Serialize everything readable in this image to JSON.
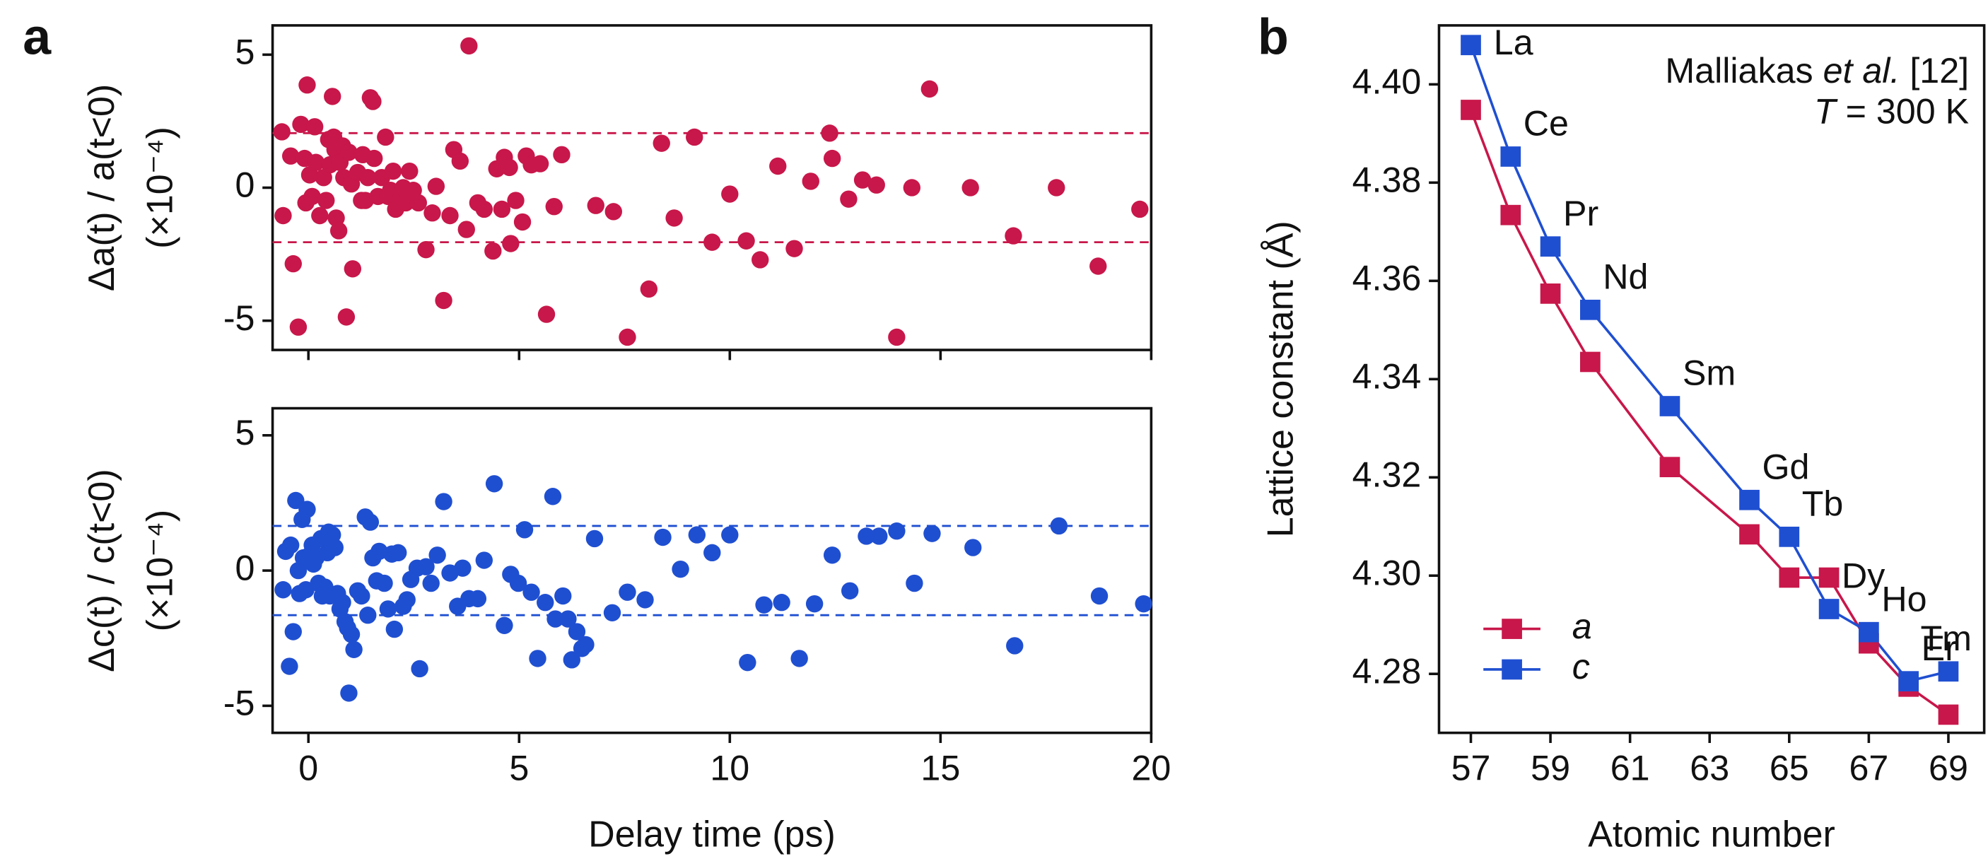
{
  "chart_data": [
    {
      "type": "scatter",
      "panel_label": "a",
      "ylabel": "Δa(t) / a(t<0)",
      "ylabel_unit": "(×10⁻⁴)",
      "color": "#c8174a",
      "xlim": [
        -0.85,
        20
      ],
      "xticks": [
        0,
        5,
        10,
        15,
        20
      ],
      "xtick_labels": false,
      "ylim": [
        -6.1,
        6.1
      ],
      "yticks": [
        -5,
        0,
        5
      ],
      "reference_lines": [
        2.05,
        -2.05
      ],
      "x": [
        -0.63,
        -0.6,
        -0.42,
        -0.36,
        -0.24,
        -0.18,
        -0.09,
        -0.06,
        -0.03,
        0.03,
        0.09,
        0.15,
        0.18,
        0.27,
        0.36,
        0.42,
        0.48,
        0.51,
        0.57,
        0.6,
        0.63,
        0.66,
        0.72,
        0.75,
        0.81,
        0.84,
        0.9,
        0.96,
        1.02,
        1.05,
        1.17,
        1.26,
        1.29,
        1.35,
        1.41,
        1.47,
        1.53,
        1.56,
        1.65,
        1.74,
        1.83,
        1.89,
        1.95,
        2.01,
        2.07,
        2.1,
        2.25,
        2.31,
        2.4,
        2.49,
        2.61,
        2.79,
        2.94,
        3.03,
        3.21,
        3.36,
        3.45,
        3.6,
        3.75,
        3.81,
        4.02,
        4.17,
        4.38,
        4.47,
        4.59,
        4.65,
        4.77,
        4.8,
        4.92,
        5.08,
        5.17,
        5.29,
        5.5,
        5.65,
        5.83,
        6.01,
        6.82,
        7.24,
        7.57,
        8.08,
        8.38,
        8.68,
        9.16,
        9.58,
        10,
        10.39,
        10.72,
        11.14,
        11.53,
        11.92,
        12.37,
        12.43,
        12.82,
        13.15,
        13.48,
        13.96,
        14.32,
        14.74,
        15.71,
        16.73,
        17.75,
        18.74,
        19.73
      ],
      "values": [
        2.1,
        -1.05,
        1.19,
        -2.86,
        -5.24,
        2.38,
        1.1,
        -0.57,
        3.86,
        0.48,
        -0.33,
        2.29,
        0.95,
        -1.05,
        0.38,
        -0.48,
        1.81,
        0.86,
        3.43,
        1.9,
        1.43,
        -1.14,
        -1.62,
        0.95,
        1.57,
        0.38,
        -4.86,
        1.33,
        0.14,
        -3.05,
        0.57,
        -0.48,
        1.24,
        -0.48,
        0.38,
        3.38,
        3.24,
        1.1,
        -0.33,
        0.38,
        1.9,
        -0.33,
        -0.1,
        0.62,
        -0.81,
        -0.57,
        0,
        -0.57,
        0.62,
        -0.1,
        -0.57,
        -2.33,
        -0.95,
        0.05,
        -4.24,
        -1.05,
        1.43,
        1.0,
        -1.57,
        5.33,
        -0.57,
        -0.81,
        -2.38,
        0.71,
        -0.81,
        1.14,
        0.76,
        -2.1,
        -0.48,
        -1.29,
        1.19,
        0.86,
        0.9,
        -4.76,
        -0.71,
        1.24,
        -0.67,
        -0.9,
        -5.62,
        -3.81,
        1.67,
        -1.14,
        1.9,
        -2.05,
        -0.24,
        -2.0,
        -2.71,
        0.81,
        -2.29,
        0.24,
        2.05,
        1.1,
        -0.43,
        0.29,
        0.1,
        -5.62,
        0,
        3.71,
        0,
        -1.81,
        0,
        -2.95,
        -0.81
      ]
    },
    {
      "type": "scatter",
      "ylabel": "Δc(t) / c(t<0)",
      "ylabel_unit": "(×10⁻⁴)",
      "xlabel": "Delay time (ps)",
      "color": "#1f4fd1",
      "xlim": [
        -0.85,
        20
      ],
      "xticks": [
        0,
        5,
        10,
        15,
        20
      ],
      "xtick_labels": true,
      "ylim": [
        -6.0,
        6.0
      ],
      "yticks": [
        -5,
        0,
        5
      ],
      "reference_lines": [
        1.65,
        -1.65
      ],
      "x": [
        -0.6,
        -0.54,
        -0.45,
        -0.42,
        -0.36,
        -0.3,
        -0.24,
        -0.21,
        -0.15,
        -0.12,
        -0.06,
        -0.03,
        0.03,
        0.09,
        0.12,
        0.18,
        0.24,
        0.3,
        0.33,
        0.39,
        0.45,
        0.48,
        0.51,
        0.57,
        0.63,
        0.69,
        0.75,
        0.81,
        0.87,
        0.93,
        0.96,
        1.02,
        1.08,
        1.17,
        1.26,
        1.35,
        1.41,
        1.47,
        1.53,
        1.62,
        1.68,
        1.8,
        1.89,
        1.98,
        2.04,
        2.13,
        2.25,
        2.34,
        2.43,
        2.58,
        2.64,
        2.79,
        2.91,
        3.06,
        3.21,
        3.36,
        3.54,
        3.66,
        3.81,
        4.02,
        4.17,
        4.41,
        4.65,
        4.8,
        4.98,
        5.13,
        5.29,
        5.44,
        5.62,
        5.8,
        5.86,
        6.04,
        6.16,
        6.25,
        6.37,
        6.49,
        6.58,
        6.79,
        7.21,
        7.57,
        7.99,
        8.41,
        8.83,
        9.22,
        9.58,
        10,
        10.42,
        10.81,
        11.23,
        11.65,
        12.01,
        12.43,
        12.85,
        13.24,
        13.54,
        13.96,
        14.38,
        14.8,
        15.77,
        16.76,
        17.81,
        18.77,
        19.82
      ],
      "values": [
        -0.71,
        0.71,
        -3.54,
        0.94,
        -2.26,
        2.59,
        0,
        -0.85,
        1.89,
        0.47,
        -0.71,
        2.26,
        0.57,
        0.94,
        0.24,
        0.47,
        -0.47,
        1.18,
        -0.94,
        -0.61,
        0.66,
        1.42,
        -0.94,
        1.32,
        0.85,
        -0.85,
        -1.42,
        -1.18,
        -1.89,
        -2.12,
        -4.53,
        -2.36,
        -2.92,
        -0.75,
        -0.94,
        1.98,
        -1.65,
        1.79,
        0.47,
        -0.38,
        0.71,
        -0.47,
        -1.42,
        0.61,
        -2.17,
        0.66,
        -1.32,
        -1.08,
        -0.33,
        0.09,
        -3.63,
        0.14,
        -0.47,
        0.57,
        2.55,
        -0.09,
        -1.32,
        0.09,
        -1.04,
        -1.04,
        0.38,
        3.21,
        -2.03,
        -0.14,
        -0.47,
        1.51,
        -0.8,
        -3.25,
        -1.18,
        2.74,
        -1.79,
        -0.94,
        -1.79,
        -3.3,
        -2.26,
        -2.88,
        -2.74,
        1.18,
        -1.56,
        -0.8,
        -1.08,
        1.23,
        0.05,
        1.32,
        0.66,
        1.32,
        -3.4,
        -1.27,
        -1.18,
        -3.25,
        -1.23,
        0.57,
        -0.75,
        1.27,
        1.27,
        1.46,
        -0.47,
        1.37,
        0.85,
        -2.78,
        1.65,
        -0.94,
        -1.23
      ]
    },
    {
      "type": "line",
      "panel_label": "b",
      "ylabel": "Lattice constant (Å)",
      "xlabel": "Atomic number",
      "xlim": [
        56.2,
        69.9
      ],
      "xticks": [
        57,
        59,
        61,
        63,
        65,
        67,
        69
      ],
      "ylim": [
        4.268,
        4.412
      ],
      "yticks": [
        4.28,
        {
          "value": 4.3,
          "label": "4.30"
        },
        4.32,
        4.34,
        4.36,
        4.38,
        {
          "value": 4.4,
          "label": "4.40"
        }
      ],
      "legend": "lower left",
      "annotation": [
        [
          {
            "text": "Malliakas "
          },
          {
            "text": "et al.",
            "italic": true
          },
          {
            "text": " [12]"
          }
        ],
        [
          {
            "text": "T",
            "italic": true
          },
          {
            "text": " = 300 K"
          }
        ]
      ],
      "x": [
        57,
        58,
        59,
        60,
        62,
        64,
        65,
        66,
        67,
        68,
        69
      ],
      "point_labels": [
        "La",
        "Ce",
        "Pr",
        "Nd",
        "Sm",
        "Gd",
        "Tb",
        "Dy",
        "Ho",
        "Er",
        "Tm"
      ],
      "series": [
        {
          "name": "a",
          "color": "#c8174a",
          "values": [
            4.3948,
            4.3734,
            4.3574,
            4.3435,
            4.3221,
            4.3084,
            4.2996,
            4.2996,
            4.2862,
            4.2774,
            4.2717
          ]
        },
        {
          "name": "c",
          "color": "#1f4fd1",
          "values": [
            4.408,
            4.3853,
            4.367,
            4.3541,
            4.3345,
            4.3154,
            4.3079,
            4.2932,
            4.2885,
            4.2785,
            4.2805
          ]
        }
      ]
    }
  ]
}
